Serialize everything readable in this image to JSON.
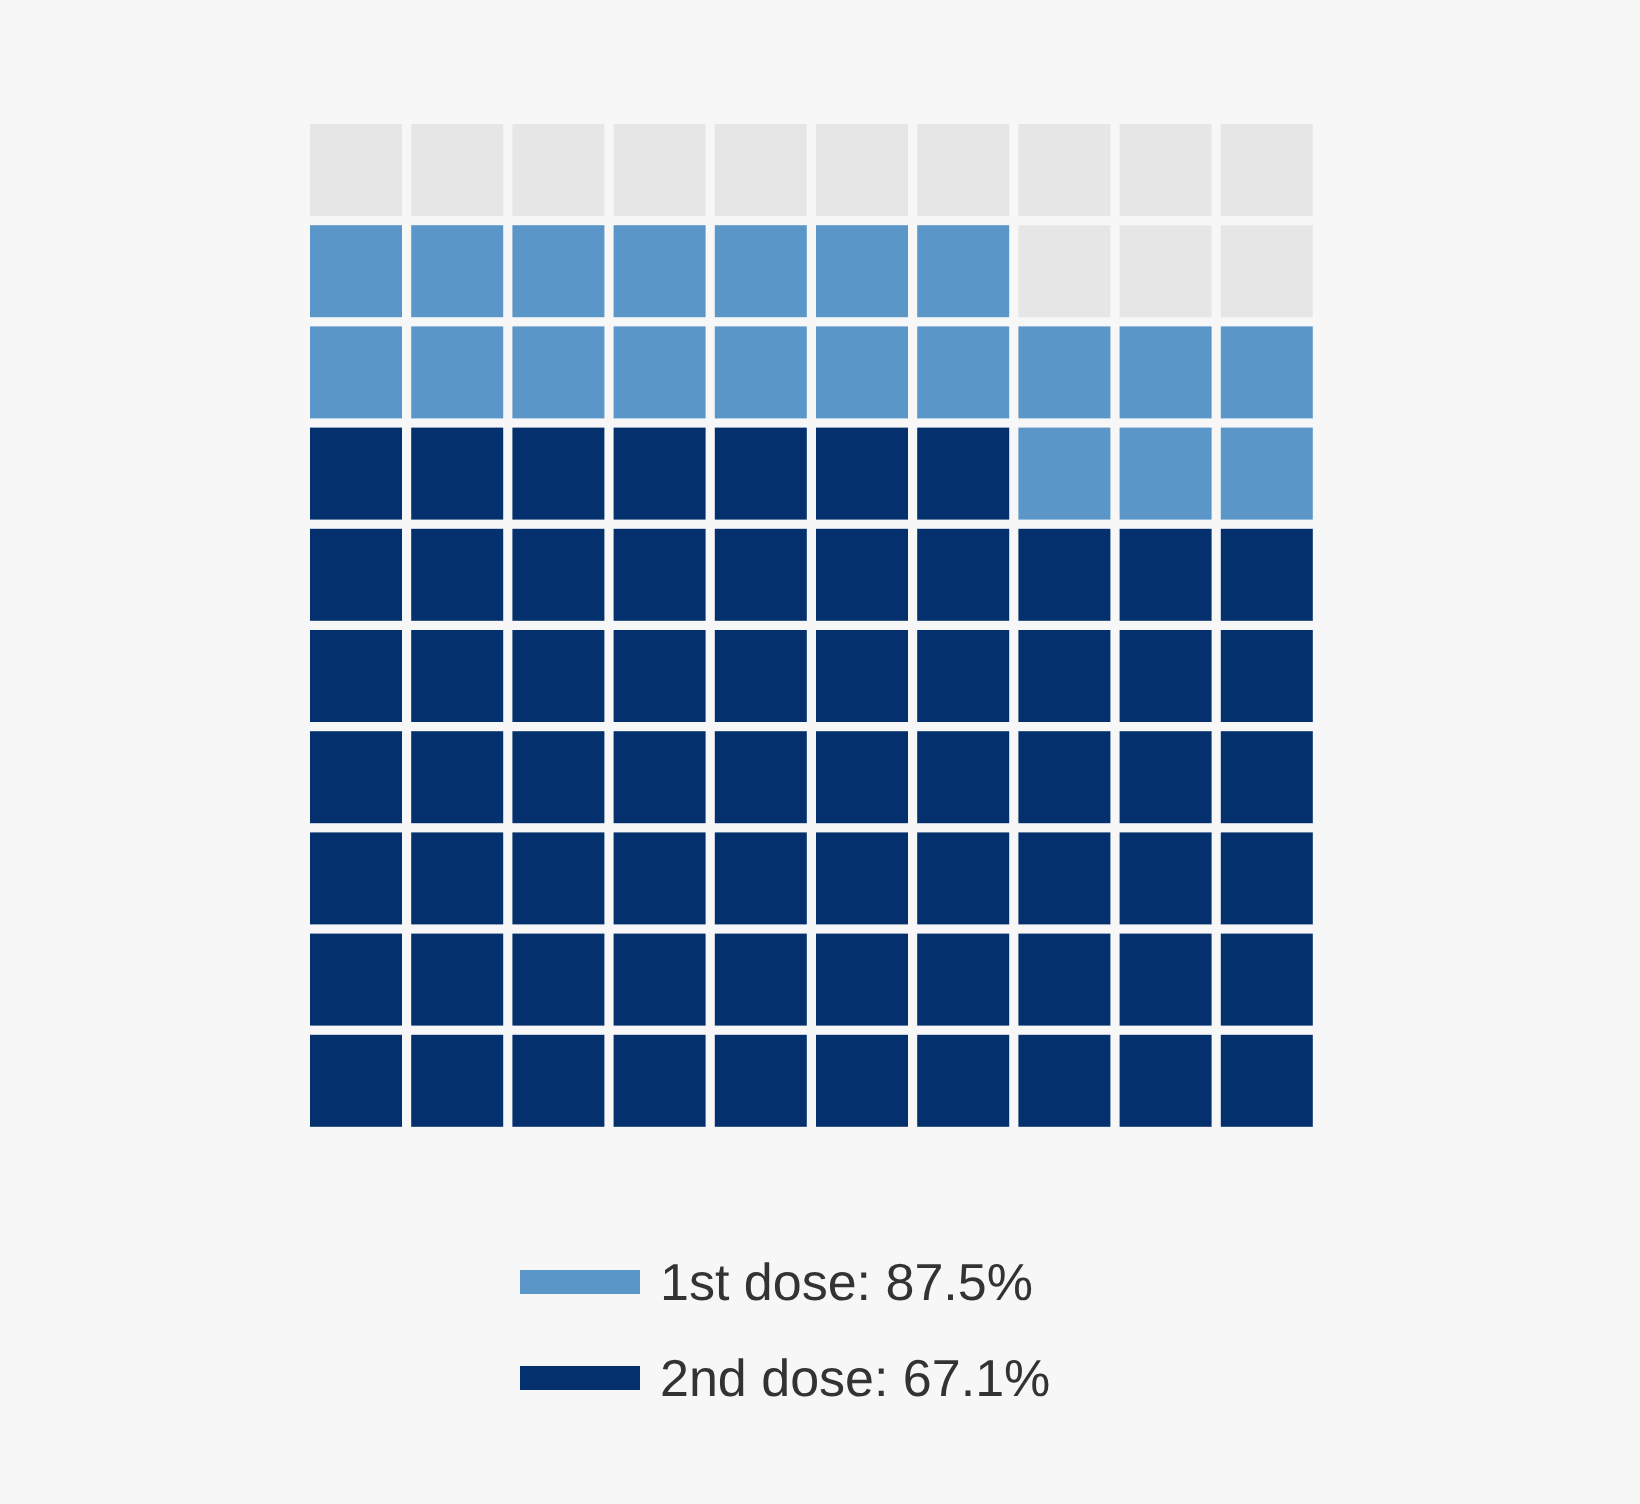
{
  "chart_data": {
    "type": "other",
    "categories": [
      "1st dose",
      "2nd dose"
    ],
    "values": [
      87.5,
      67.1
    ],
    "value_labels": [
      ": 87.5%",
      ": 67.1%"
    ],
    "colors": [
      "#5b96c8",
      "#05306e"
    ]
  }
}
